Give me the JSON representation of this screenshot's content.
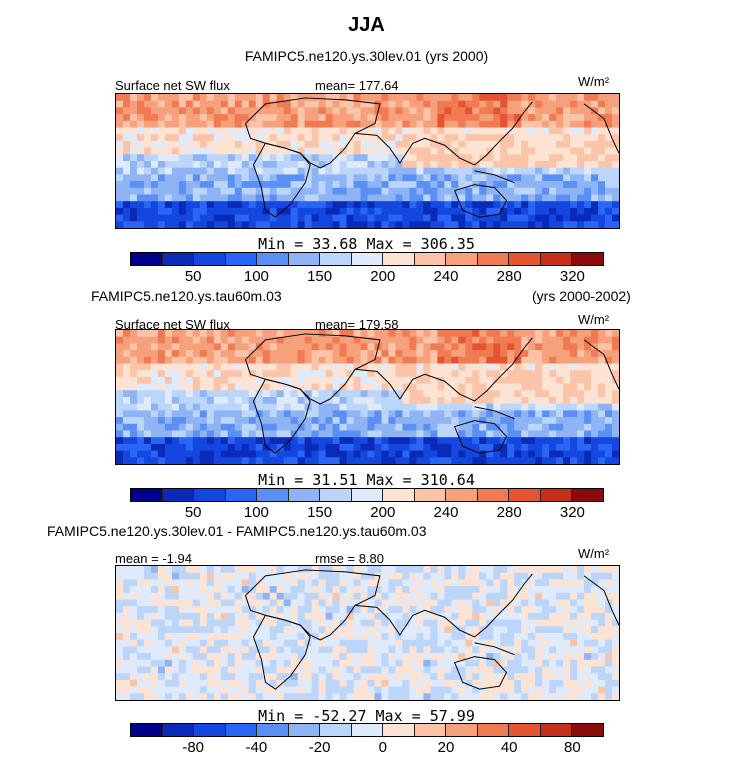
{
  "title": "JJA",
  "subtitle": "FAMIPC5.ne120.ys.30lev.01 (yrs 2000)",
  "panels": [
    {
      "left_label": "Surface net SW flux",
      "center_label": "mean= 177.64",
      "units": "W/m²",
      "minmax": "Min =   33.68  Max =  306.35",
      "ticks": [
        "50",
        "100",
        "150",
        "200",
        "240",
        "280",
        "320"
      ],
      "colors": [
        "#00008b",
        "#0a2bb8",
        "#1446e0",
        "#2a66f5",
        "#5a8ff5",
        "#8fb4f5",
        "#bcd5fa",
        "#dfeafc",
        "#fde3d3",
        "#fbc4a8",
        "#f7a07c",
        "#f07a52",
        "#e45430",
        "#c62f1a",
        "#8b0a0a"
      ],
      "style": "mean"
    },
    {
      "top_left": "FAMIPC5.ne120.ys.tau60m.03",
      "top_right": "(yrs 2000-2002)",
      "left_label": "Surface net SW flux",
      "center_label": "mean= 179.58",
      "units": "W/m²",
      "minmax": "Min =   31.51  Max =  310.64",
      "ticks": [
        "50",
        "100",
        "150",
        "200",
        "240",
        "280",
        "320"
      ],
      "colors": [
        "#00008b",
        "#0a2bb8",
        "#1446e0",
        "#2a66f5",
        "#5a8ff5",
        "#8fb4f5",
        "#bcd5fa",
        "#dfeafc",
        "#fde3d3",
        "#fbc4a8",
        "#f7a07c",
        "#f07a52",
        "#e45430",
        "#c62f1a",
        "#8b0a0a"
      ],
      "style": "mean"
    },
    {
      "top_left": "FAMIPC5.ne120.ys.30lev.01 - FAMIPC5.ne120.ys.tau60m.03",
      "left_label": "mean =  -1.94",
      "center_label": "rmse =   8.80",
      "units": "W/m²",
      "minmax": "Min = -52.27  Max =  57.99",
      "ticks": [
        "-80",
        "-40",
        "-20",
        "0",
        "20",
        "40",
        "80"
      ],
      "colors": [
        "#00008b",
        "#0a2bb8",
        "#1446e0",
        "#2a66f5",
        "#5a8ff5",
        "#8fb4f5",
        "#bcd5fa",
        "#dfeafc",
        "#fde3d3",
        "#fbc4a8",
        "#f7a07c",
        "#f07a52",
        "#e45430",
        "#c62f1a",
        "#8b0a0a"
      ],
      "style": "diff"
    }
  ]
}
